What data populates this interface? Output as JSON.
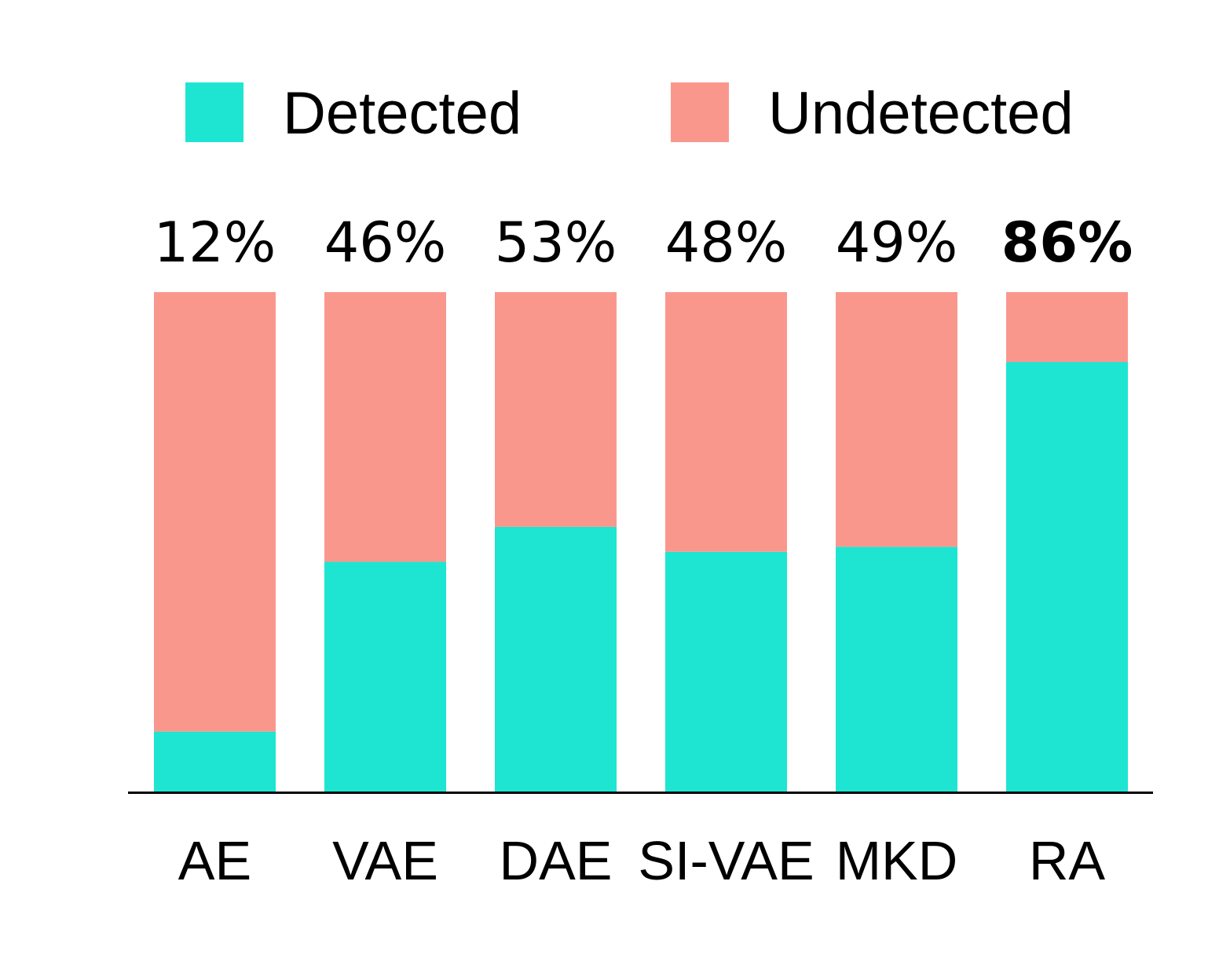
{
  "chart_data": {
    "type": "bar",
    "stacked": true,
    "normalized": true,
    "categories": [
      "AE",
      "VAE",
      "DAE",
      "SI-VAE",
      "MKD",
      "RA"
    ],
    "series": [
      {
        "name": "Detected",
        "color": "#1de5d1",
        "values": [
          12,
          46,
          53,
          48,
          49,
          86
        ]
      },
      {
        "name": "Undetected",
        "color": "#fa978d",
        "values": [
          88,
          54,
          47,
          52,
          51,
          14
        ]
      }
    ],
    "data_labels": [
      "12%",
      "46%",
      "53%",
      "48%",
      "49%",
      "86%"
    ],
    "highlighted_category": "RA",
    "ylim": [
      0,
      100
    ],
    "legend_position": "top",
    "grid": false,
    "axis_color": "#000000"
  }
}
